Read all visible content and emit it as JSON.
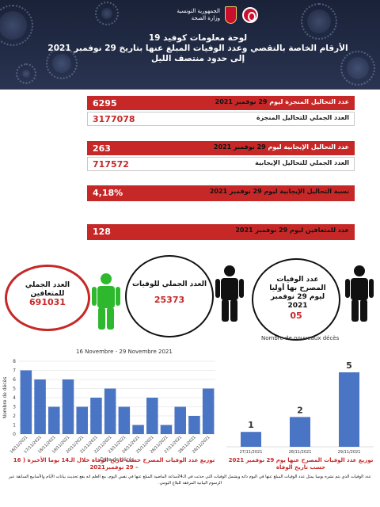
{
  "header": {
    "country": "الجمهورية التونسية",
    "ministry": "وزارة الصحة",
    "title_line1": "لوحة معلومات كوفيد 19",
    "title_line2": "الأرقام الخاصة بالتقصي وعدد الوفيات المبلغ عنها بتاريخ  29 نوفمبر 2021",
    "title_line3": "إلى حدود منتصف الليل"
  },
  "stats": {
    "tests_day_label": "عدد التحاليل المنجزة ليوم",
    "tests_day_date": " 29 نوفمبر 2021",
    "tests_day_value": "6295",
    "tests_total_label": "العدد الجملي للتحاليل المنجزة",
    "tests_total_value": "3177078",
    "positive_day_label": "عدد التحاليل الإيجابية ليوم",
    "positive_day_date": " 29 نوفمبر 2021",
    "positive_day_value": "263",
    "positive_total_label": "العدد الجملي للتحاليل الإيجابية",
    "positive_total_value": "717572",
    "positivity_label": "نسبة التحاليل الإيجابية ليوم 29 نوفمبر 2021",
    "positivity_value": "4,18%",
    "recovered_day_label": "عدد للمتعافين ليوم 29 نوفمبر 2021",
    "recovered_day_value": "128"
  },
  "circles": {
    "recovered_total_label": "العدد الجملي للمتعافين",
    "recovered_total_value": "691031",
    "deaths_total_label": "العدد الجملي للوفيات",
    "deaths_total_value": "25373",
    "deaths_declared_label": "عدد الوفيات المصرح بها أوليا ليوم 29 نوفمبر 2021",
    "deaths_declared_value": "05"
  },
  "colors": {
    "red": "#c62828",
    "green": "#2eb82e",
    "bar": "#4a74c4",
    "header": "#1f2840"
  },
  "chart_data": [
    {
      "type": "bar",
      "title": "16 Novembre - 29 Novembre 2021",
      "xlabel": "Date de décès",
      "ylabel": "Nombre de décès",
      "ylim": [
        0,
        8
      ],
      "yticks": [
        0,
        1,
        2,
        3,
        4,
        5,
        6,
        7,
        8
      ],
      "grid": true,
      "categories": [
        "16/11/2021",
        "17/11/2021",
        "18/11/2021",
        "19/11/2021",
        "20/11/2021",
        "21/11/2021",
        "22/11/2021",
        "23/11/2021",
        "24/11/2021",
        "25/11/2021",
        "26/11/2021",
        "27/11/2021",
        "28/11/2021",
        "29/11/2021"
      ],
      "values": [
        7,
        6,
        3,
        6,
        3,
        4,
        5,
        3,
        1,
        4,
        1,
        3,
        2,
        5
      ],
      "caption": "توزيع عدد الوفيات المصرح حسب تاريخ الوفاة خلال الـ14 يوما الأخيرة ( 16 – 29 نوفمبر2021"
    },
    {
      "type": "bar",
      "title": "Nombre de nouveaux décès",
      "categories": [
        "27/11/2021",
        "28/11/2021",
        "29/11/2021"
      ],
      "values": [
        1,
        2,
        5
      ],
      "caption": "توزيع عدد الوفيات المصرح عنها يوم 29 نوفمبر 2021 حسب تاريخ الوفاة"
    }
  ],
  "footnote": "عدد الوفيات الذي يتم نشره يوميا يمثل عدد الوفيات المبلغ عنها في اليوم ذاته ويشمل الوفيات التي حدثت في الـ24ساعة الماضية المبلغ عنها في نفس اليوم، مع العلم انه يقع تحديث بيانات الأيام والأسابيع السابقة عبر الرسوم البيانية المرفقة للبلاغ اليومي."
}
